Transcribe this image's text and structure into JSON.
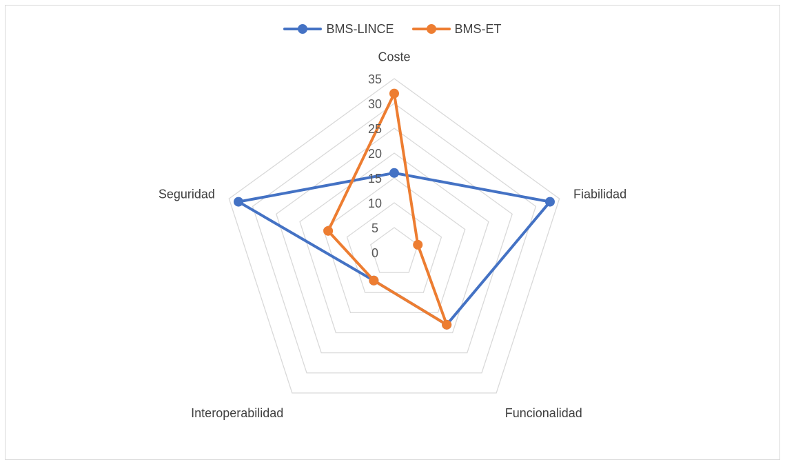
{
  "chart_data": {
    "type": "radar",
    "title": "",
    "categories": [
      "Coste",
      "Fiabilidad",
      "Funcionalidad",
      "Interoperabilidad",
      "Seguridad"
    ],
    "radial_ticks": [
      "0",
      "5",
      "10",
      "15",
      "20",
      "25",
      "30",
      "35"
    ],
    "range": [
      0,
      35
    ],
    "grid": true,
    "legend_position": "top",
    "series": [
      {
        "name": "BMS-LINCE",
        "color": "#4472C4",
        "values": [
          16,
          33,
          18,
          7,
          33
        ]
      },
      {
        "name": "BMS-ET",
        "color": "#ED7D31",
        "values": [
          32,
          5,
          18,
          7,
          14
        ]
      }
    ]
  }
}
